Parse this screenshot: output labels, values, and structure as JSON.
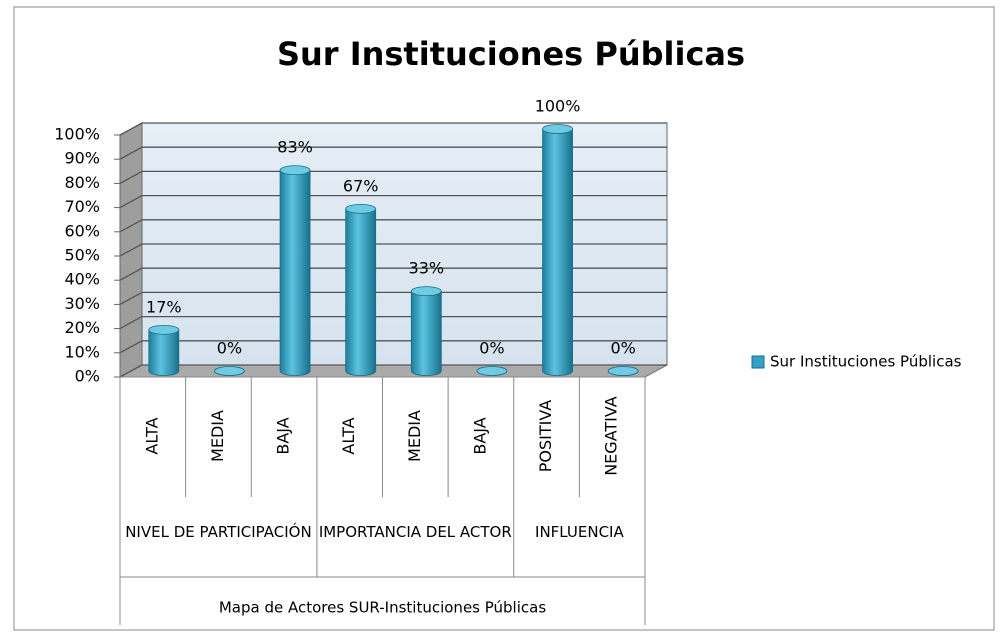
{
  "chart_data": {
    "type": "bar",
    "title": "Sur Instituciones Públicas",
    "xlabel": "Mapa de Actores SUR-Instituciones Públicas",
    "category_groups": [
      {
        "name": "NIVEL DE PARTICIPACIÓN",
        "categories": [
          "ALTA",
          "MEDIA",
          "BAJA"
        ]
      },
      {
        "name": "IMPORTANCIA DEL ACTOR",
        "categories": [
          "ALTA",
          "MEDIA",
          "BAJA"
        ]
      },
      {
        "name": "INFLUENCIA",
        "categories": [
          "POSITIVA",
          "NEGATIVA"
        ]
      }
    ],
    "series": [
      {
        "name": "Sur Instituciones Públicas",
        "color": "#33a2c4",
        "values": [
          17,
          0,
          83,
          67,
          33,
          0,
          100,
          0
        ],
        "value_labels": [
          "17%",
          "0%",
          "83%",
          "67%",
          "33%",
          "0%",
          "100%",
          "0%"
        ]
      }
    ],
    "ylim": [
      0,
      100
    ],
    "yticks": [
      {
        "value": 0,
        "label": "0%"
      },
      {
        "value": 10,
        "label": "10%"
      },
      {
        "value": 20,
        "label": "20%"
      },
      {
        "value": 30,
        "label": "30%"
      },
      {
        "value": 40,
        "label": "40%"
      },
      {
        "value": 50,
        "label": "50%"
      },
      {
        "value": 60,
        "label": "60%"
      },
      {
        "value": 70,
        "label": "70%"
      },
      {
        "value": 80,
        "label": "80%"
      },
      {
        "value": 90,
        "label": "90%"
      },
      {
        "value": 100,
        "label": "100%"
      }
    ],
    "grid": true,
    "legend": "right"
  }
}
